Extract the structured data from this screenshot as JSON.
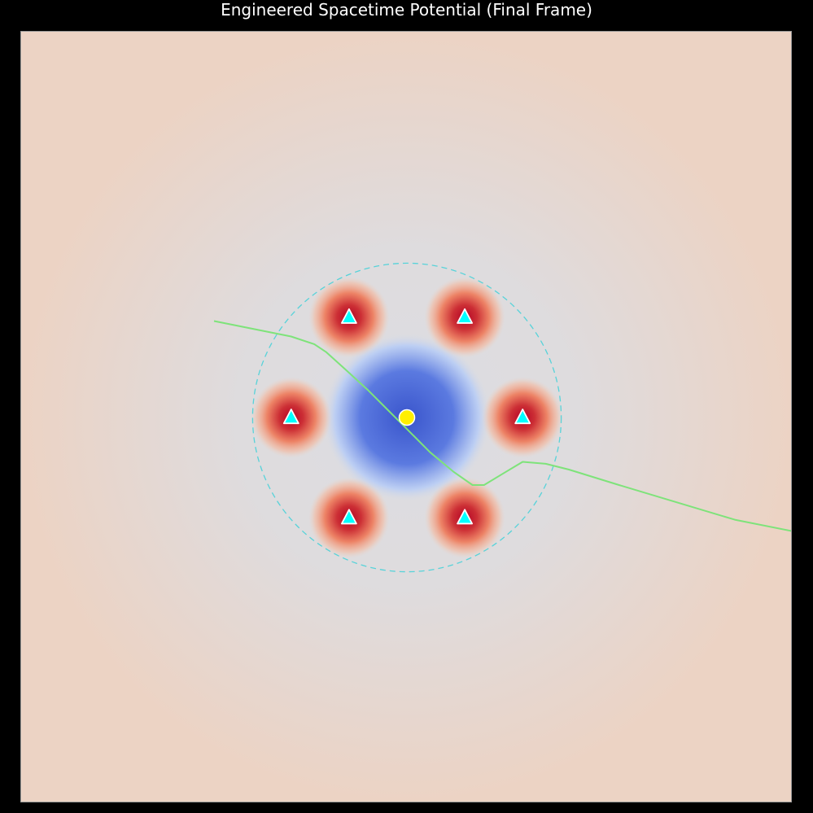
{
  "figure": {
    "title": "Engineered Spacetime Potential (Final Frame)",
    "background_color": "#000000"
  },
  "chart_data": {
    "type": "heatmap",
    "title": "Engineered Spacetime Potential (Final Frame)",
    "xlabel": "",
    "ylabel": "",
    "xlim": [
      -10,
      10
    ],
    "ylim": [
      -10,
      10
    ],
    "axes_visible": false,
    "grid": false,
    "colormap": "coolwarm",
    "colors": {
      "background": "#ecd3c4",
      "well": "#3a55cc",
      "well_light": "#b9cdf5",
      "halo": "#dcdde2",
      "source_peak": "#b40426",
      "source_mid": "#ee7f60",
      "ring": "#48d1d8",
      "trajectory": "#7ee37a",
      "central_mass": "#ffef00",
      "markers": "#00ffff"
    },
    "central_mass": {
      "x": 0,
      "y": 0,
      "marker": "circle"
    },
    "sources": [
      {
        "x": 1.5,
        "y": 2.6
      },
      {
        "x": 3.0,
        "y": 0.0
      },
      {
        "x": 1.5,
        "y": -2.6
      },
      {
        "x": -1.5,
        "y": -2.6
      },
      {
        "x": -3.0,
        "y": 0.0
      },
      {
        "x": -1.5,
        "y": 2.6
      }
    ],
    "source_marker": "triangle",
    "ring": {
      "center": [
        0,
        0
      ],
      "radius": 4.0,
      "style": "dashed"
    },
    "trajectory": {
      "x": [
        -5.0,
        -4.0,
        -3.0,
        -2.4,
        -2.1,
        -1.6,
        -1.0,
        -0.5,
        0.0,
        0.6,
        1.2,
        1.7,
        2.0,
        2.5,
        3.0,
        3.6,
        4.2,
        5.5,
        7.0,
        8.5,
        10.0
      ],
      "y": [
        2.5,
        2.3,
        2.1,
        1.9,
        1.7,
        1.25,
        0.7,
        0.2,
        -0.3,
        -0.9,
        -1.4,
        -1.75,
        -1.75,
        -1.45,
        -1.15,
        -1.2,
        -1.35,
        -1.75,
        -2.2,
        -2.65,
        -2.95
      ]
    }
  }
}
